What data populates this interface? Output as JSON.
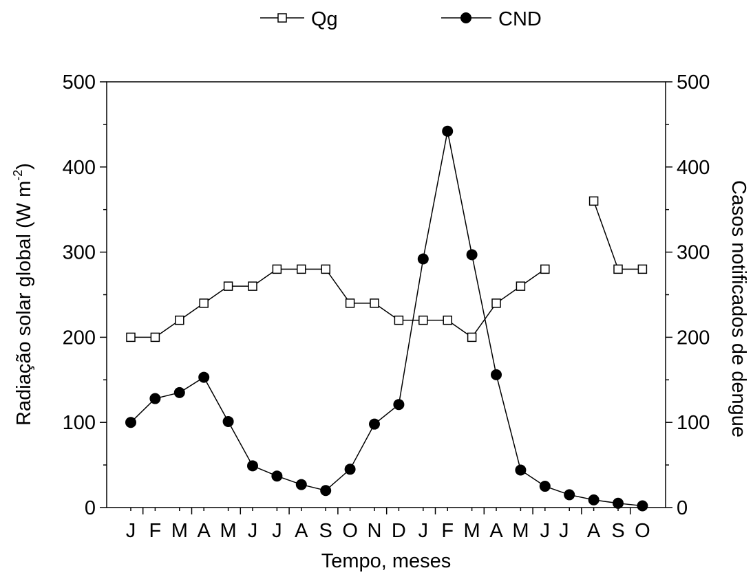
{
  "chart_data": {
    "type": "line",
    "xlabel": "Tempo, meses",
    "ylabel_left": "Radiação solar global (W m",
    "ylabel_left_sup": "-2",
    "ylabel_left_close": ")",
    "ylabel_right": "Casos notificados de dengue",
    "categories": [
      "J",
      "F",
      "M",
      "A",
      "M",
      "J",
      "J",
      "A",
      "S",
      "O",
      "N",
      "D",
      "J",
      "F",
      "M",
      "A",
      "M",
      "J",
      "J",
      "A",
      "S",
      "O"
    ],
    "ylim_left": [
      0,
      500
    ],
    "ylim_right": [
      0,
      500
    ],
    "yticks": [
      0,
      100,
      200,
      300,
      400,
      500
    ],
    "grid": false,
    "legend_position": "top-center",
    "series": [
      {
        "name": "Qg",
        "axis": "left",
        "marker": "open-square",
        "color": "#000000",
        "values": [
          200,
          200,
          220,
          240,
          260,
          260,
          280,
          280,
          280,
          240,
          240,
          220,
          220,
          220,
          200,
          240,
          260,
          280,
          null,
          360,
          280,
          280
        ]
      },
      {
        "name": "CND",
        "axis": "right",
        "marker": "filled-circle",
        "color": "#000000",
        "values": [
          100,
          128,
          135,
          153,
          101,
          49,
          37,
          27,
          20,
          45,
          98,
          121,
          292,
          442,
          297,
          156,
          44,
          25,
          15,
          9,
          5,
          2
        ]
      }
    ]
  }
}
